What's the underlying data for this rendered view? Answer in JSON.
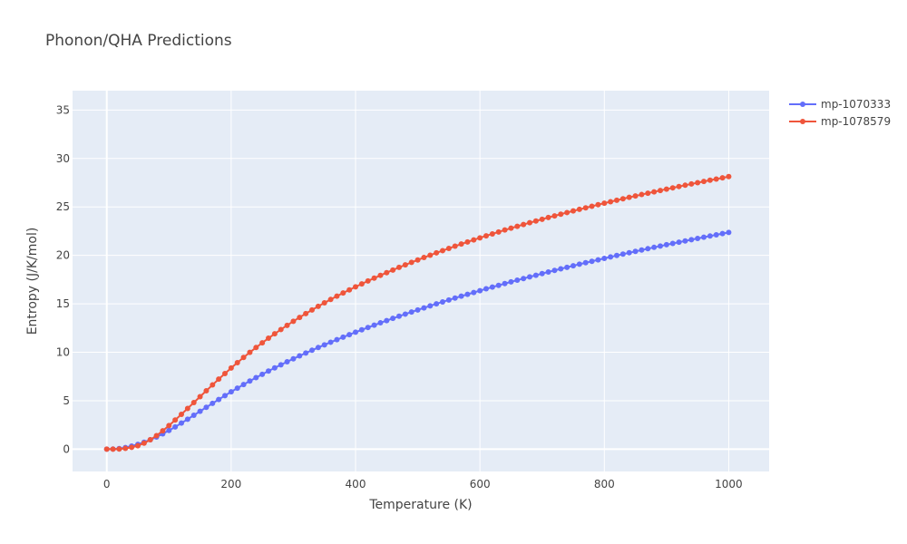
{
  "chart_data": {
    "type": "line",
    "title": "Phonon/QHA Predictions",
    "xlabel": "Temperature (K)",
    "ylabel": "Entropy (J/K/mol)",
    "xlim": [
      -55,
      1065
    ],
    "ylim": [
      -2.3,
      37.0
    ],
    "xticks": [
      0,
      200,
      400,
      600,
      800,
      1000
    ],
    "xtick_labels": [
      "0",
      "200",
      "400",
      "600",
      "800",
      "1000"
    ],
    "yticks": [
      0,
      5,
      10,
      15,
      20,
      25,
      30,
      35
    ],
    "ytick_labels": [
      "0",
      "5",
      "10",
      "15",
      "20",
      "25",
      "30",
      "35"
    ],
    "grid": true,
    "legend_position": "top-right",
    "x": [
      0,
      10,
      20,
      30,
      40,
      50,
      60,
      70,
      80,
      90,
      100,
      110,
      120,
      130,
      140,
      150,
      160,
      170,
      180,
      190,
      200,
      210,
      220,
      230,
      240,
      250,
      260,
      270,
      280,
      290,
      300,
      310,
      320,
      330,
      340,
      350,
      360,
      370,
      380,
      390,
      400,
      410,
      420,
      430,
      440,
      450,
      460,
      470,
      480,
      490,
      500,
      510,
      520,
      530,
      540,
      550,
      560,
      570,
      580,
      590,
      600,
      610,
      620,
      630,
      640,
      650,
      660,
      670,
      680,
      690,
      700,
      710,
      720,
      730,
      740,
      750,
      760,
      770,
      780,
      790,
      800,
      810,
      820,
      830,
      840,
      850,
      860,
      870,
      880,
      890,
      900,
      910,
      920,
      930,
      940,
      950,
      960,
      970,
      980,
      990,
      1000
    ],
    "series": [
      {
        "name": "mp-1070333",
        "color": "#636efa",
        "values": [
          0.0,
          0.01,
          0.06,
          0.17,
          0.32,
          0.5,
          0.72,
          0.97,
          1.26,
          1.58,
          1.93,
          2.3,
          2.69,
          3.09,
          3.5,
          3.91,
          4.32,
          4.73,
          5.13,
          5.53,
          5.92,
          6.3,
          6.67,
          7.03,
          7.38,
          7.72,
          8.06,
          8.39,
          8.71,
          9.02,
          9.33,
          9.63,
          9.92,
          10.21,
          10.49,
          10.77,
          11.04,
          11.3,
          11.56,
          11.82,
          12.07,
          12.32,
          12.56,
          12.8,
          13.04,
          13.27,
          13.5,
          13.72,
          13.94,
          14.16,
          14.37,
          14.58,
          14.79,
          15.0,
          15.2,
          15.4,
          15.6,
          15.79,
          15.98,
          16.17,
          16.36,
          16.55,
          16.73,
          16.91,
          17.09,
          17.27,
          17.44,
          17.61,
          17.78,
          17.95,
          18.12,
          18.29,
          18.45,
          18.61,
          18.77,
          18.93,
          19.09,
          19.24,
          19.39,
          19.54,
          19.69,
          19.84,
          19.99,
          20.13,
          20.27,
          20.41,
          20.55,
          20.69,
          20.83,
          20.96,
          21.1,
          21.23,
          21.36,
          21.49,
          21.62,
          21.75,
          21.88,
          22.0,
          22.12,
          22.25,
          22.37
        ]
      },
      {
        "name": "mp-1078579",
        "color": "#ef553b",
        "values": [
          0.0,
          0.0,
          0.02,
          0.08,
          0.19,
          0.36,
          0.62,
          0.97,
          1.4,
          1.9,
          2.44,
          3.01,
          3.6,
          4.2,
          4.81,
          5.42,
          6.03,
          6.63,
          7.23,
          7.81,
          8.38,
          8.93,
          9.47,
          9.99,
          10.49,
          10.98,
          11.45,
          11.91,
          12.35,
          12.78,
          13.2,
          13.6,
          13.99,
          14.37,
          14.74,
          15.1,
          15.45,
          15.79,
          16.12,
          16.44,
          16.75,
          17.06,
          17.36,
          17.65,
          17.94,
          18.22,
          18.49,
          18.76,
          19.02,
          19.28,
          19.53,
          19.78,
          20.02,
          20.26,
          20.49,
          20.72,
          20.95,
          21.17,
          21.39,
          21.6,
          21.81,
          22.02,
          22.22,
          22.42,
          22.62,
          22.81,
          23.0,
          23.19,
          23.37,
          23.55,
          23.73,
          23.91,
          24.08,
          24.25,
          24.42,
          24.59,
          24.75,
          24.91,
          25.07,
          25.23,
          25.39,
          25.54,
          25.69,
          25.84,
          25.99,
          26.13,
          26.28,
          26.42,
          26.56,
          26.7,
          26.84,
          26.97,
          27.11,
          27.24,
          27.37,
          27.5,
          27.63,
          27.76,
          27.88,
          28.0,
          28.13
        ]
      }
    ]
  }
}
